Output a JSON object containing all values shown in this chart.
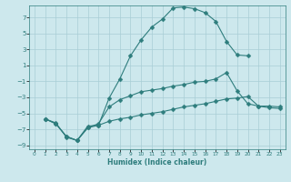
{
  "xlabel": "Humidex (Indice chaleur)",
  "xlim": [
    -0.5,
    23.5
  ],
  "ylim": [
    -9.5,
    8.5
  ],
  "yticks": [
    -9,
    -7,
    -5,
    -3,
    -1,
    1,
    3,
    5,
    7
  ],
  "xticks": [
    0,
    1,
    2,
    3,
    4,
    5,
    6,
    7,
    8,
    9,
    10,
    11,
    12,
    13,
    14,
    15,
    16,
    17,
    18,
    19,
    20,
    21,
    22,
    23
  ],
  "bg_color": "#cde8ed",
  "grid_color": "#a8cdd5",
  "line_color": "#2e7d7d",
  "line1_x": [
    1,
    2,
    3,
    4,
    5,
    6,
    7,
    8,
    9,
    10,
    11,
    12,
    13,
    14,
    15,
    16,
    17,
    18,
    19,
    20
  ],
  "line1_y": [
    -5.7,
    -6.2,
    -8.0,
    -8.4,
    -6.6,
    -6.5,
    -3.1,
    -0.7,
    2.2,
    4.2,
    5.8,
    6.8,
    8.2,
    8.3,
    8.1,
    7.6,
    6.5,
    4.0,
    2.3,
    2.2
  ],
  "line2_x": [
    1,
    2,
    3,
    4,
    5,
    6,
    7,
    8,
    9,
    10,
    11,
    12,
    13,
    14,
    15,
    16,
    17,
    18,
    19,
    20,
    21,
    22,
    23
  ],
  "line2_y": [
    -5.7,
    -6.3,
    -7.9,
    -8.4,
    -6.8,
    -6.3,
    -4.2,
    -3.3,
    -2.8,
    -2.3,
    -2.1,
    -1.9,
    -1.6,
    -1.4,
    -1.1,
    -1.0,
    -0.7,
    0.1,
    -2.2,
    -3.8,
    -4.1,
    -4.1,
    -4.2
  ],
  "line3_x": [
    1,
    2,
    3,
    4,
    5,
    6,
    7,
    8,
    9,
    10,
    11,
    12,
    13,
    14,
    15,
    16,
    17,
    18,
    19,
    20,
    21,
    22,
    23
  ],
  "line3_y": [
    -5.7,
    -6.3,
    -7.9,
    -8.4,
    -6.8,
    -6.5,
    -6.0,
    -5.7,
    -5.5,
    -5.2,
    -5.0,
    -4.8,
    -4.5,
    -4.2,
    -4.0,
    -3.8,
    -3.5,
    -3.2,
    -3.1,
    -2.9,
    -4.1,
    -4.3,
    -4.4
  ]
}
